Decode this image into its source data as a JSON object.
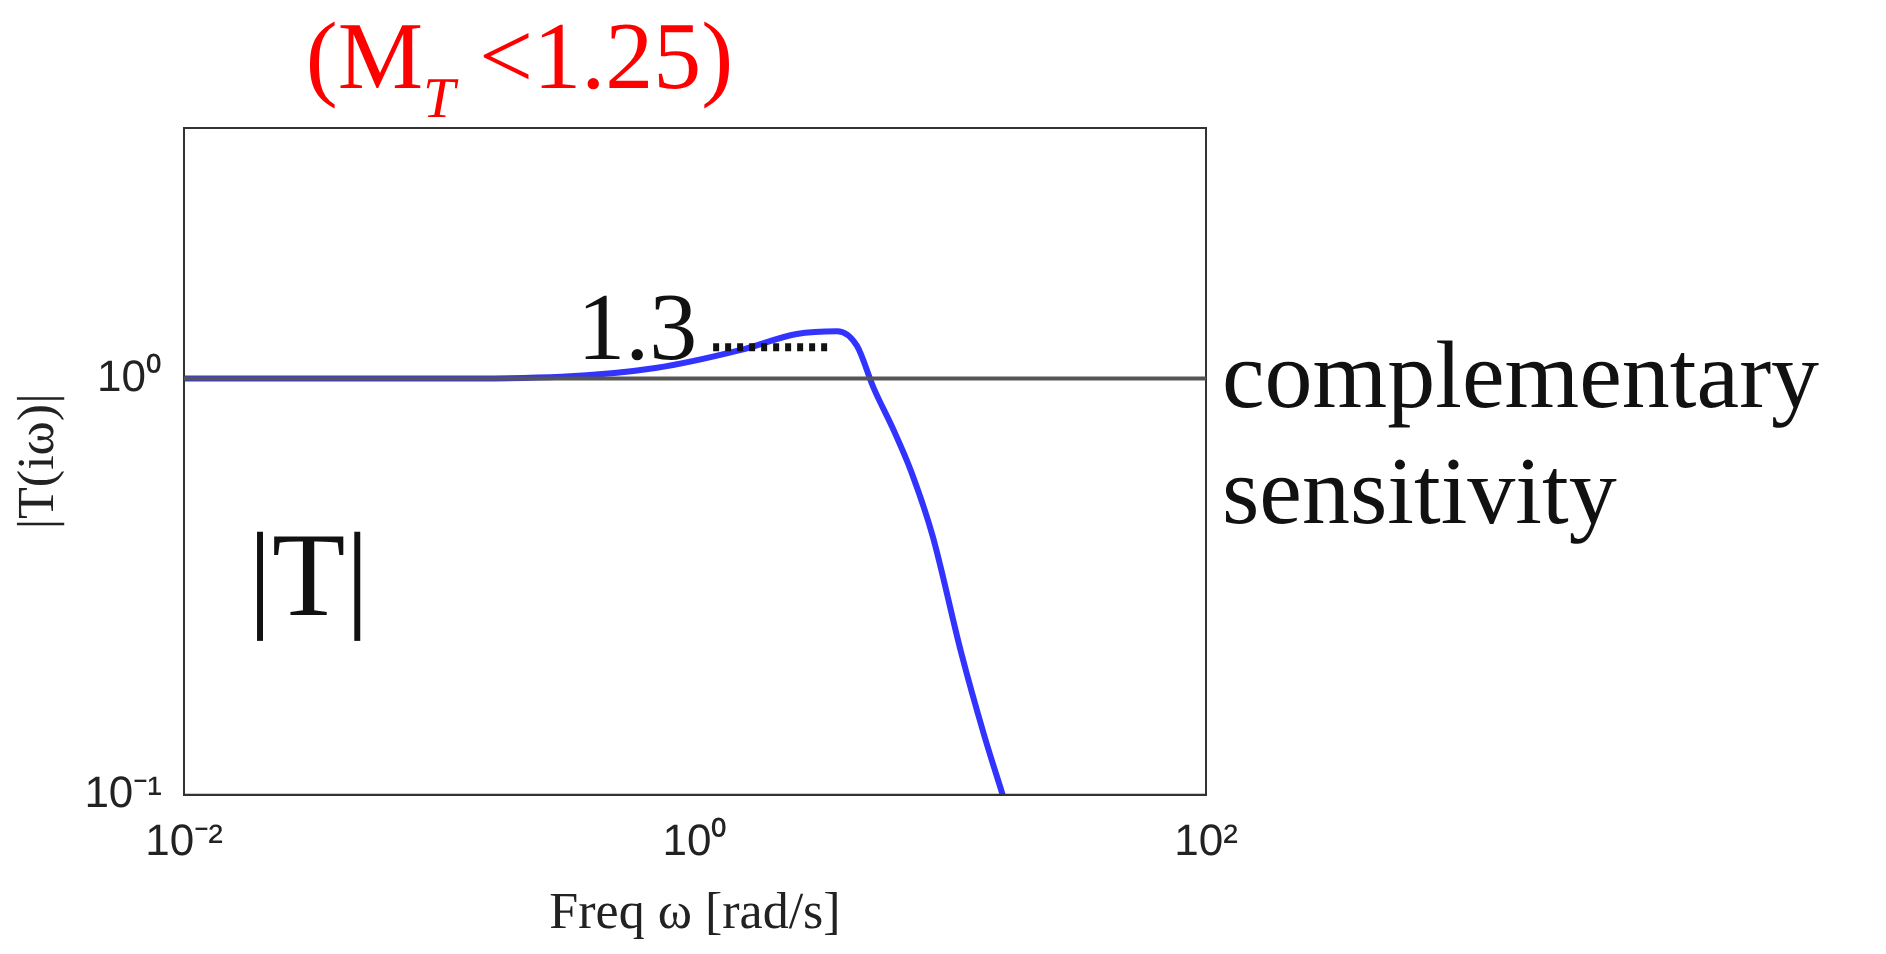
{
  "chart_data": {
    "type": "line",
    "xlabel": "Freq ω [rad/s]",
    "ylabel": "|T(iω)|",
    "log": "xy",
    "grid": false,
    "legend": false,
    "marker": "none",
    "line_style": "solid",
    "xlim": [
      0.01,
      100
    ],
    "ylim": [
      0.1,
      4
    ],
    "xticks": [
      {
        "value": 0.01,
        "label": "10⁻²"
      },
      {
        "value": 1,
        "label": "10⁰"
      },
      {
        "value": 100,
        "label": "10²"
      }
    ],
    "yticks": [
      {
        "value": 0.1,
        "label": "10⁻¹"
      },
      {
        "value": 1,
        "label": "10⁰"
      }
    ],
    "x": [
      0.01,
      0.1,
      0.3,
      0.7,
      1.5,
      2.5,
      3.6,
      4.3,
      5,
      6,
      7,
      8.5,
      11,
      13.5,
      16
    ],
    "series": [
      {
        "color": "#3333ff",
        "values": [
          1,
          1,
          1.01,
          1.06,
          1.17,
          1.28,
          1.3,
          1.2,
          0.95,
          0.75,
          0.6,
          0.42,
          0.22,
          0.14,
          0.1
        ]
      }
    ],
    "ref_lines": [
      {
        "axis": "y",
        "value": 1,
        "color": "#555555"
      }
    ],
    "annotations": [
      "(M$_{T}$ <1.25)",
      {
        "text": "1.3",
        "x": 3.6,
        "y": 1.3
      },
      "complementary sensitivity",
      "|T|"
    ]
  }
}
